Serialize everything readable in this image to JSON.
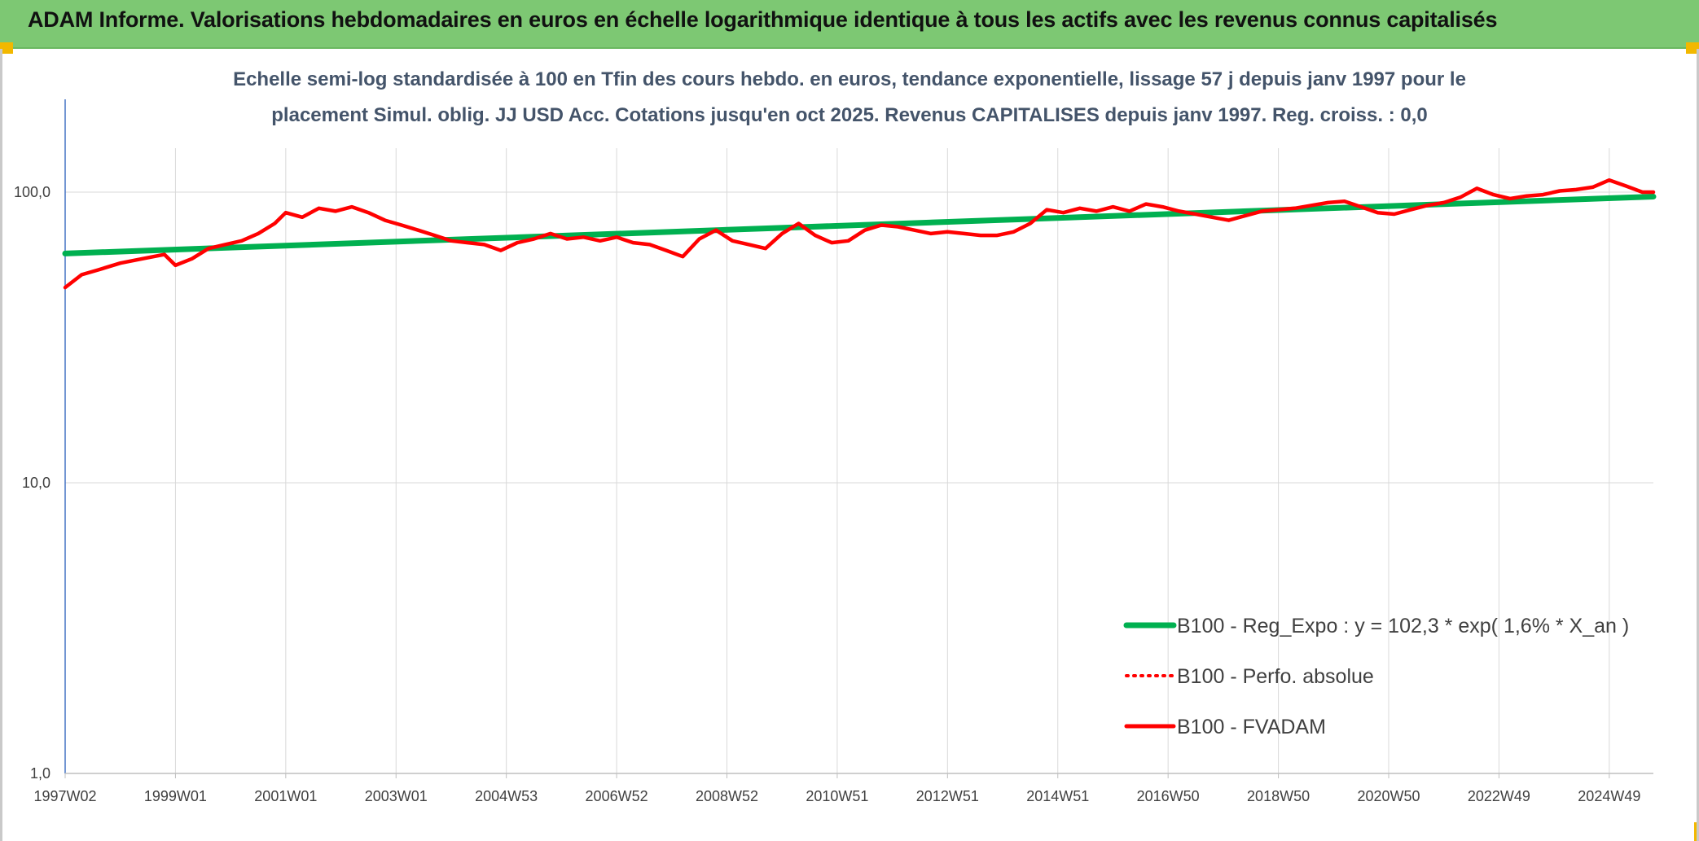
{
  "header": {
    "title": "ADAM Informe. Valorisations hebdomadaires en euros en échelle logarithmique identique à tous les actifs avec les revenus connus capitalisés"
  },
  "chart_data": {
    "type": "line",
    "title_lines": [
      "Echelle semi-log standardisée à 100 en Tfin des cours hebdo. en euros, tendance exponentielle, lissage 57 j depuis janv 1997 pour le",
      "placement Simul. oblig. JJ USD Acc. Cotations jusqu'en oct 2025. Revenus CAPITALISES depuis janv 1997. Reg. croiss. : 0,0"
    ],
    "y_scale": "log",
    "ylim": [
      1,
      200
    ],
    "yticks": [
      {
        "value": 1,
        "label": "1,0"
      },
      {
        "value": 10,
        "label": "10,0"
      },
      {
        "value": 100,
        "label": "100,0"
      }
    ],
    "x_range": [
      1997.0,
      2025.8
    ],
    "x_ticks": [
      {
        "x": 1997.0,
        "label": "1997W02"
      },
      {
        "x": 1999.0,
        "label": "1999W01"
      },
      {
        "x": 2001.0,
        "label": "2001W01"
      },
      {
        "x": 2003.0,
        "label": "2003W01"
      },
      {
        "x": 2005.0,
        "label": "2004W53"
      },
      {
        "x": 2007.0,
        "label": "2006W52"
      },
      {
        "x": 2009.0,
        "label": "2008W52"
      },
      {
        "x": 2011.0,
        "label": "2010W51"
      },
      {
        "x": 2013.0,
        "label": "2012W51"
      },
      {
        "x": 2015.0,
        "label": "2014W51"
      },
      {
        "x": 2017.0,
        "label": "2016W50"
      },
      {
        "x": 2019.0,
        "label": "2018W50"
      },
      {
        "x": 2021.0,
        "label": "2020W50"
      },
      {
        "x": 2023.0,
        "label": "2022W49"
      },
      {
        "x": 2025.0,
        "label": "2024W49"
      }
    ],
    "series": [
      {
        "name": "B100 - Reg_Expo : y = 102,3 * exp( 1,6% *  X_an )",
        "color": "#00b050",
        "style": "solid-thick",
        "x": [
          1997.0,
          2025.8
        ],
        "values": [
          61.5,
          96.5
        ]
      },
      {
        "name": "B100 - Perfo. absolue",
        "color": "#ff0000",
        "style": "dotted",
        "x": [],
        "values": []
      },
      {
        "name": "B100 - FVADAM",
        "color": "#ff0000",
        "style": "solid",
        "x": [
          1997.0,
          1997.3,
          1997.6,
          1998.0,
          1998.4,
          1998.8,
          1999.0,
          1999.3,
          1999.6,
          1999.9,
          2000.2,
          2000.5,
          2000.8,
          2001.0,
          2001.3,
          2001.6,
          2001.9,
          2002.2,
          2002.5,
          2002.8,
          2003.1,
          2003.4,
          2003.7,
          2004.0,
          2004.3,
          2004.6,
          2004.9,
          2005.2,
          2005.5,
          2005.8,
          2006.1,
          2006.4,
          2006.7,
          2007.0,
          2007.3,
          2007.6,
          2007.9,
          2008.2,
          2008.5,
          2008.8,
          2009.1,
          2009.4,
          2009.7,
          2010.0,
          2010.3,
          2010.6,
          2010.9,
          2011.2,
          2011.5,
          2011.8,
          2012.1,
          2012.4,
          2012.7,
          2013.0,
          2013.3,
          2013.6,
          2013.9,
          2014.2,
          2014.5,
          2014.8,
          2015.1,
          2015.4,
          2015.7,
          2016.0,
          2016.3,
          2016.6,
          2016.9,
          2017.2,
          2017.5,
          2017.8,
          2018.1,
          2018.4,
          2018.7,
          2019.0,
          2019.3,
          2019.6,
          2019.9,
          2020.2,
          2020.5,
          2020.8,
          2021.1,
          2021.4,
          2021.7,
          2022.0,
          2022.3,
          2022.6,
          2022.9,
          2023.2,
          2023.5,
          2023.8,
          2024.1,
          2024.4,
          2024.7,
          2025.0,
          2025.3,
          2025.6,
          2025.8
        ],
        "values": [
          47,
          52,
          54,
          57,
          59,
          61,
          56,
          59,
          64,
          66,
          68,
          72,
          78,
          85,
          82,
          88,
          86,
          89,
          85,
          80,
          77,
          74,
          71,
          68,
          67,
          66,
          63,
          67,
          69,
          72,
          69,
          70,
          68,
          70,
          67,
          66,
          63,
          60,
          69,
          74,
          68,
          66,
          64,
          72,
          78,
          71,
          67,
          68,
          74,
          77,
          76,
          74,
          72,
          73,
          72,
          71,
          71,
          73,
          78,
          87,
          85,
          88,
          86,
          89,
          86,
          91,
          89,
          86,
          84,
          82,
          80,
          83,
          86,
          87,
          88,
          90,
          92,
          93,
          89,
          85,
          84,
          87,
          90,
          92,
          96,
          103,
          98,
          95,
          97,
          98,
          101,
          102,
          104,
          110,
          105,
          100,
          100
        ]
      }
    ]
  }
}
